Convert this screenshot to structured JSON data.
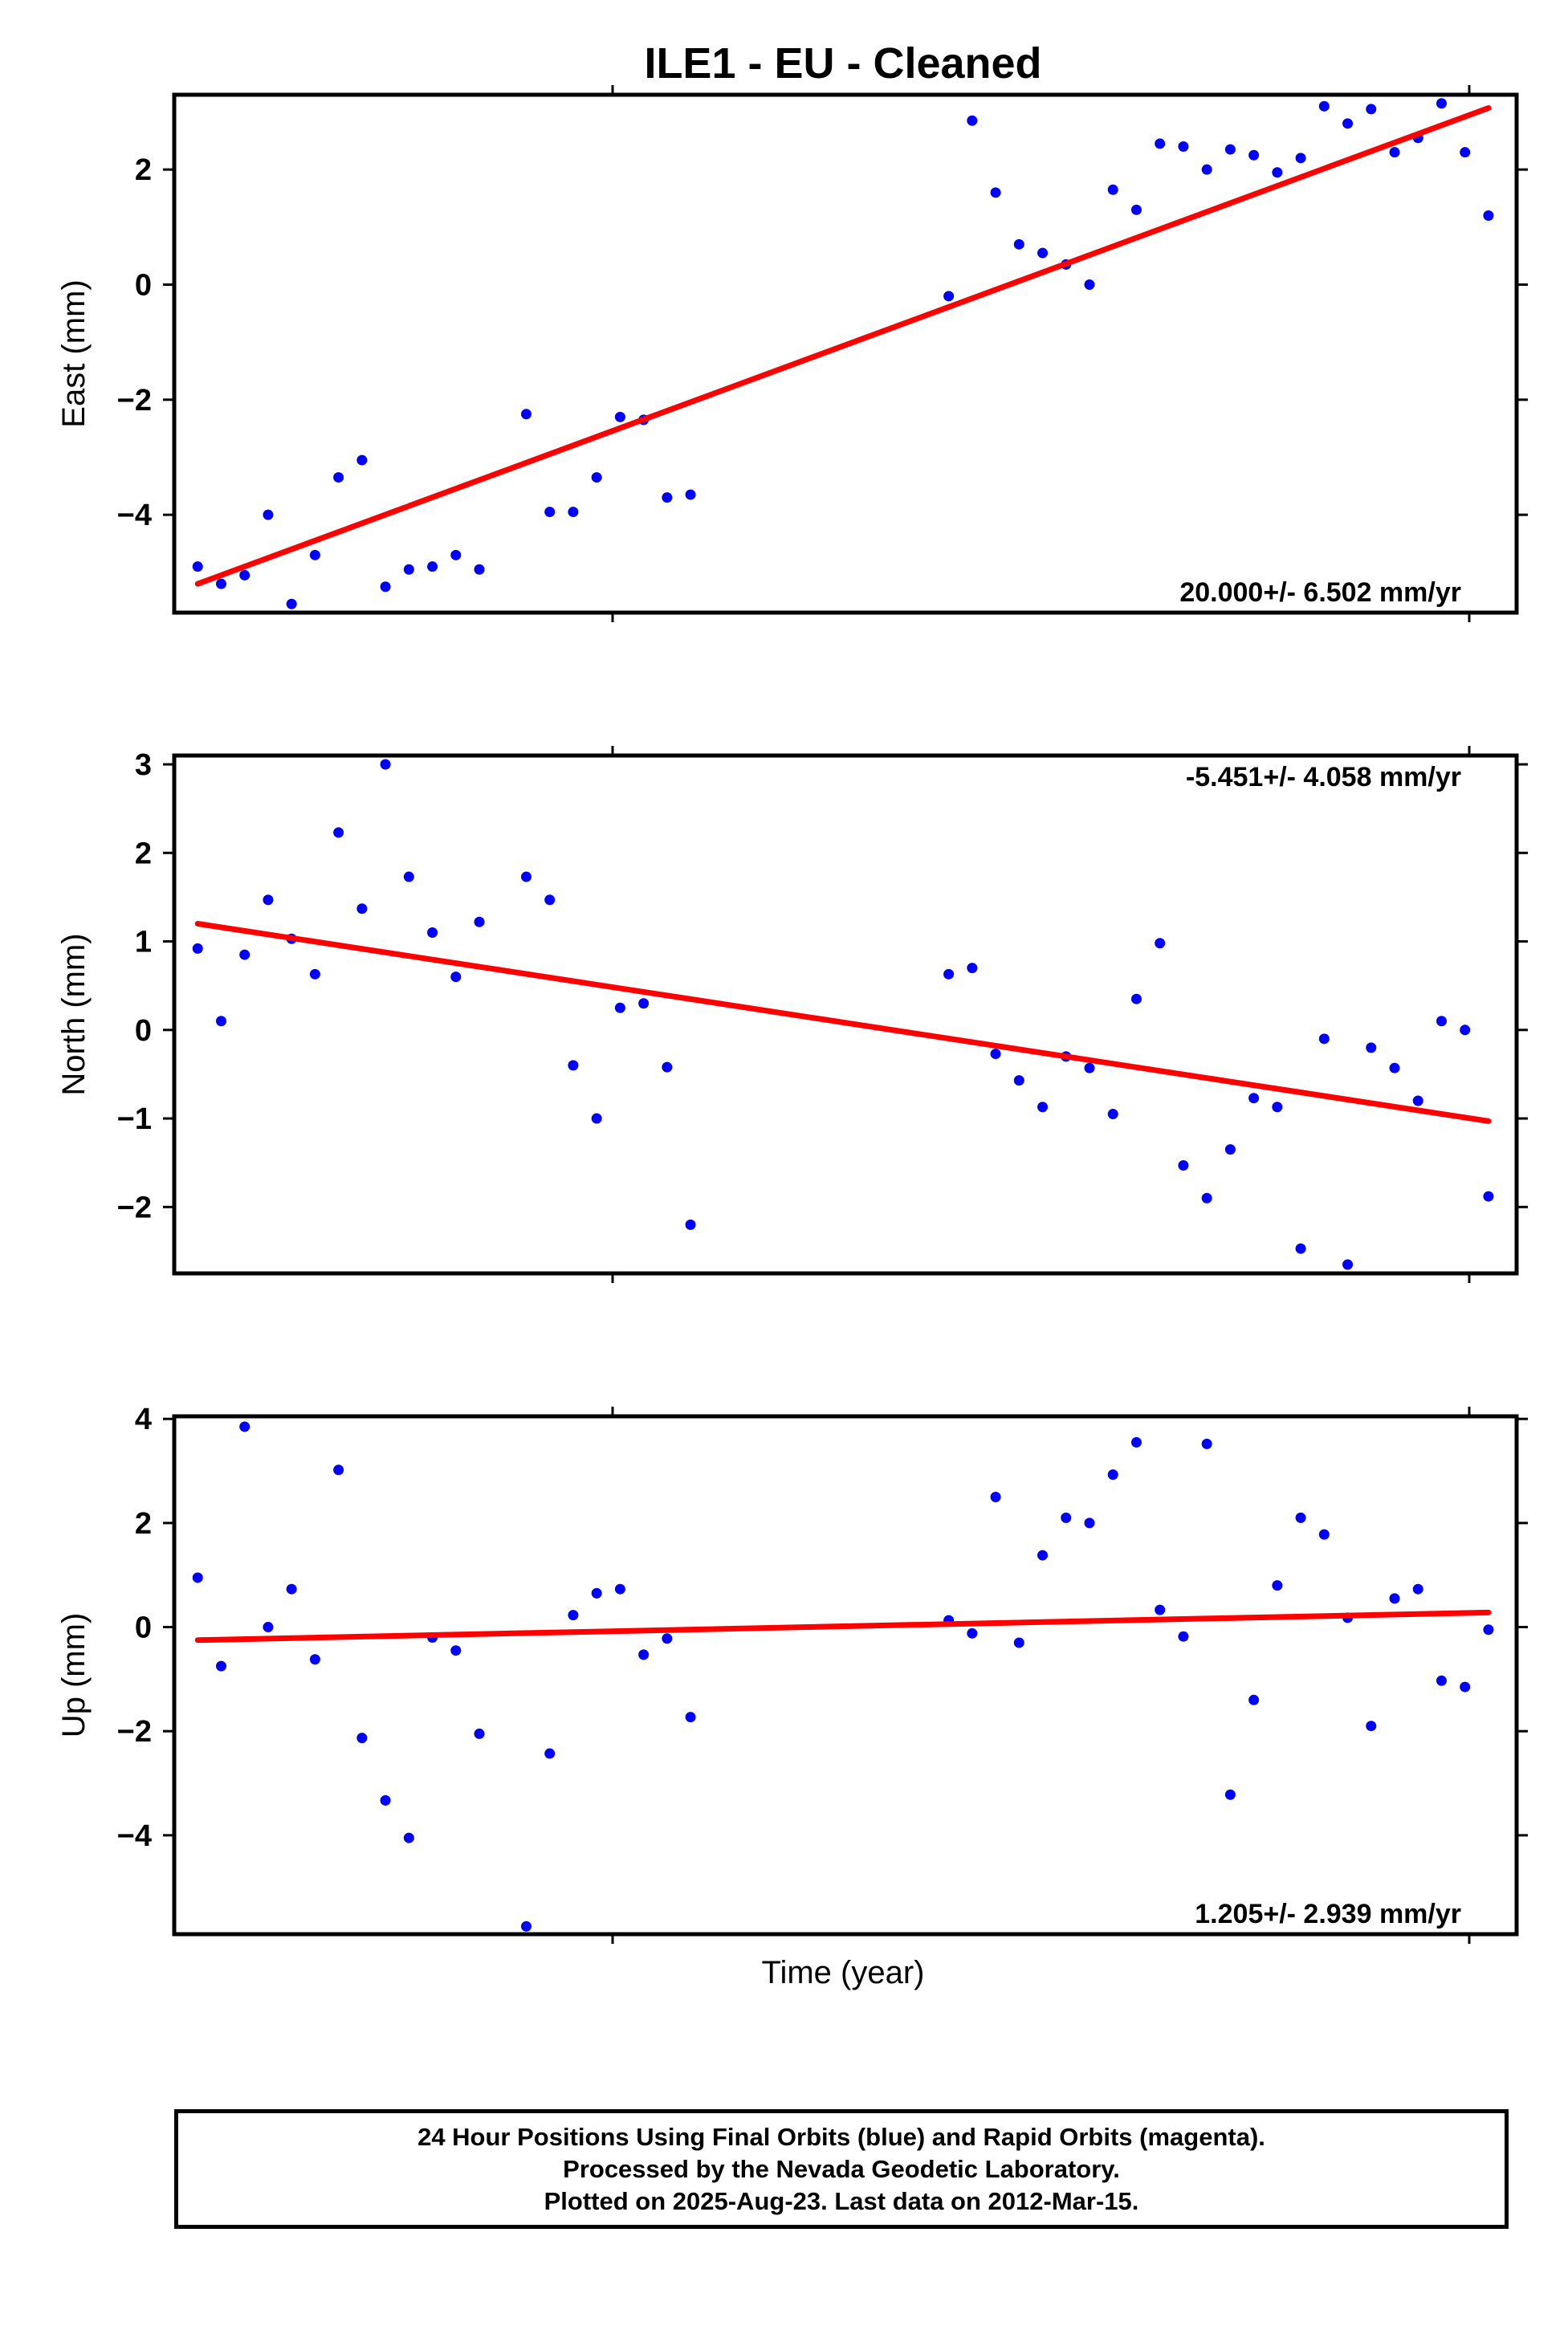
{
  "title": "ILE1  - EU - Cleaned",
  "xlabel": "Time (year)",
  "footer": {
    "line1": "24 Hour Positions Using Final Orbits (blue) and Rapid Orbits (magenta).",
    "line2": "Processed by the Nevada Geodetic Laboratory.",
    "line3": "Plotted on 2025-Aug-23. Last data on 2012-Mar-15."
  },
  "colors": {
    "points": "#0000ff",
    "trend": "#ff0000",
    "axes": "#000000"
  },
  "chart_data": [
    {
      "type": "scatter",
      "ylabel": "East (mm)",
      "ylim": [
        -5.7,
        3.3
      ],
      "yticks": [
        2,
        0,
        -2,
        -4
      ],
      "ytick_labels": [
        "2",
        "0",
        "−2",
        "−4"
      ],
      "rate_label": "20.000+/- 6.502 mm/yr",
      "rate_position": "bottom-right",
      "trend": {
        "start": -5.2,
        "end": 3.07
      },
      "series": [
        {
          "values": [
            [
              1,
              -4.9
            ],
            [
              2,
              -5.2
            ],
            [
              3,
              -5.05
            ],
            [
              4,
              -4.0
            ],
            [
              5,
              -5.55
            ],
            [
              6,
              -4.7
            ],
            [
              7,
              -3.35
            ],
            [
              8,
              -3.05
            ],
            [
              9,
              -5.25
            ],
            [
              10,
              -4.95
            ],
            [
              11,
              -4.9
            ],
            [
              12,
              -4.7
            ],
            [
              13,
              -4.95
            ],
            [
              15,
              -2.25
            ],
            [
              16,
              -3.95
            ],
            [
              17,
              -3.95
            ],
            [
              18,
              -3.35
            ],
            [
              19,
              -2.3
            ],
            [
              20,
              -2.35
            ],
            [
              21,
              -3.7
            ],
            [
              22,
              -3.65
            ],
            [
              33,
              -0.2
            ],
            [
              34,
              2.85
            ],
            [
              35,
              1.6
            ],
            [
              36,
              0.7
            ],
            [
              37,
              0.55
            ],
            [
              38,
              0.35
            ],
            [
              39,
              0.0
            ],
            [
              40,
              1.65
            ],
            [
              41,
              1.3
            ],
            [
              42,
              2.45
            ],
            [
              43,
              2.4
            ],
            [
              44,
              2.0
            ],
            [
              45,
              2.35
            ],
            [
              46,
              2.25
            ],
            [
              47,
              1.95
            ],
            [
              48,
              2.2
            ],
            [
              49,
              3.1
            ],
            [
              50,
              2.8
            ],
            [
              51,
              3.05
            ],
            [
              52,
              2.3
            ],
            [
              53,
              2.55
            ],
            [
              54,
              3.15
            ],
            [
              55,
              2.3
            ],
            [
              56,
              1.2
            ]
          ]
        }
      ]
    },
    {
      "type": "scatter",
      "ylabel": "North (mm)",
      "ylim": [
        -2.75,
        3.1
      ],
      "yticks": [
        3,
        2,
        1,
        0,
        -1,
        -2
      ],
      "ytick_labels": [
        "3",
        "2",
        "1",
        "0",
        "−1",
        "−2"
      ],
      "rate_label": "-5.451+/- 4.058 mm/yr",
      "rate_position": "top-right",
      "trend": {
        "start": 1.2,
        "end": -1.03
      },
      "series": [
        {
          "values": [
            [
              1,
              0.92
            ],
            [
              2,
              0.1
            ],
            [
              3,
              0.85
            ],
            [
              4,
              1.47
            ],
            [
              5,
              1.03
            ],
            [
              6,
              0.63
            ],
            [
              7,
              2.23
            ],
            [
              8,
              1.37
            ],
            [
              9,
              3.0
            ],
            [
              10,
              1.73
            ],
            [
              11,
              1.1
            ],
            [
              12,
              0.6
            ],
            [
              13,
              1.22
            ],
            [
              15,
              1.73
            ],
            [
              16,
              1.47
            ],
            [
              17,
              -0.4
            ],
            [
              18,
              -1.0
            ],
            [
              19,
              0.25
            ],
            [
              20,
              0.3
            ],
            [
              21,
              -0.42
            ],
            [
              22,
              -2.2
            ],
            [
              33,
              0.63
            ],
            [
              34,
              0.7
            ],
            [
              35,
              -0.27
            ],
            [
              36,
              -0.57
            ],
            [
              37,
              -0.87
            ],
            [
              38,
              -0.3
            ],
            [
              39,
              -0.43
            ],
            [
              40,
              -0.95
            ],
            [
              41,
              0.35
            ],
            [
              42,
              0.98
            ],
            [
              43,
              -1.53
            ],
            [
              44,
              -1.9
            ],
            [
              45,
              -1.35
            ],
            [
              46,
              -0.77
            ],
            [
              47,
              -0.87
            ],
            [
              48,
              -2.47
            ],
            [
              49,
              -0.1
            ],
            [
              50,
              -2.65
            ],
            [
              51,
              -0.2
            ],
            [
              52,
              -0.43
            ],
            [
              53,
              -0.8
            ],
            [
              54,
              0.1
            ],
            [
              55,
              0.0
            ],
            [
              56,
              -1.88
            ]
          ]
        }
      ]
    },
    {
      "type": "scatter",
      "ylabel": "Up (mm)",
      "ylim": [
        -5.9,
        4.05
      ],
      "yticks": [
        4,
        2,
        0,
        -2,
        -4
      ],
      "ytick_labels": [
        "4",
        "2",
        "0",
        "−2",
        "−4"
      ],
      "rate_label": "1.205+/- 2.939 mm/yr",
      "rate_position": "bottom-right",
      "trend": {
        "start": -0.25,
        "end": 0.28
      },
      "series": [
        {
          "values": [
            [
              1,
              0.95
            ],
            [
              2,
              -0.75
            ],
            [
              3,
              3.85
            ],
            [
              4,
              0.0
            ],
            [
              5,
              0.73
            ],
            [
              6,
              -0.62
            ],
            [
              7,
              3.02
            ],
            [
              8,
              -2.13
            ],
            [
              9,
              -3.33
            ],
            [
              10,
              -4.05
            ],
            [
              11,
              -0.2
            ],
            [
              12,
              -0.45
            ],
            [
              13,
              -2.05
            ],
            [
              15,
              -5.75
            ],
            [
              16,
              -2.43
            ],
            [
              17,
              0.23
            ],
            [
              18,
              0.65
            ],
            [
              19,
              0.73
            ],
            [
              20,
              -0.53
            ],
            [
              21,
              -0.22
            ],
            [
              22,
              -1.73
            ],
            [
              33,
              0.13
            ],
            [
              34,
              -0.12
            ],
            [
              35,
              2.5
            ],
            [
              36,
              -0.3
            ],
            [
              37,
              1.38
            ],
            [
              38,
              2.1
            ],
            [
              39,
              2.0
            ],
            [
              40,
              2.93
            ],
            [
              41,
              3.55
            ],
            [
              42,
              0.33
            ],
            [
              43,
              -0.18
            ],
            [
              44,
              3.52
            ],
            [
              45,
              -3.22
            ],
            [
              46,
              -1.4
            ],
            [
              47,
              0.8
            ],
            [
              48,
              2.1
            ],
            [
              49,
              1.78
            ],
            [
              50,
              0.18
            ],
            [
              51,
              -1.9
            ],
            [
              52,
              0.55
            ],
            [
              53,
              0.73
            ],
            [
              54,
              -1.03
            ],
            [
              55,
              -1.15
            ],
            [
              56,
              -0.05
            ]
          ]
        }
      ]
    }
  ]
}
